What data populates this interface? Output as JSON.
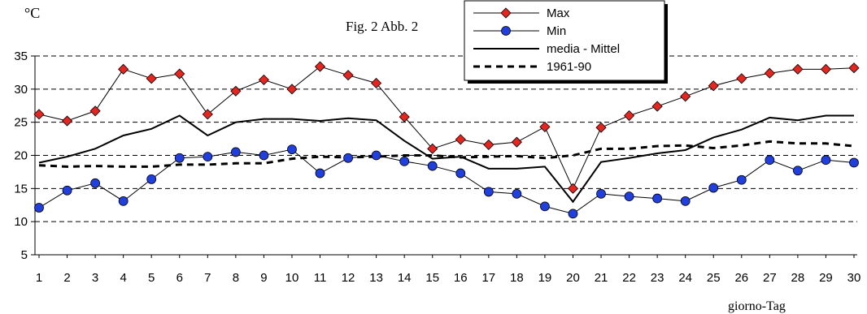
{
  "chart_data": {
    "type": "line",
    "title": "Fig. 2   Abb. 2",
    "ylabel": "°C",
    "xlabel": "giorno-Tag",
    "ylim": [
      5,
      35
    ],
    "yticks": [
      5,
      10,
      15,
      20,
      25,
      30,
      35
    ],
    "grid": "horizontal dashed",
    "legend_position": "top-center-right",
    "x": [
      1,
      2,
      3,
      4,
      5,
      6,
      7,
      8,
      9,
      10,
      11,
      12,
      13,
      14,
      15,
      16,
      17,
      18,
      19,
      20,
      21,
      22,
      23,
      24,
      25,
      26,
      27,
      28,
      29,
      30
    ],
    "series": [
      {
        "name": "Max",
        "marker": "diamond",
        "marker_color": "#e8241e",
        "line_style": "thin",
        "values": [
          26.2,
          25.2,
          26.7,
          33.0,
          31.6,
          32.3,
          26.2,
          29.7,
          31.4,
          30.0,
          33.4,
          32.1,
          30.9,
          25.8,
          21.0,
          22.4,
          21.6,
          22.0,
          24.3,
          15.0,
          24.2,
          26.0,
          27.4,
          28.9,
          30.5,
          31.6,
          32.4,
          33.0,
          33.0,
          33.2
        ]
      },
      {
        "name": "Min",
        "marker": "circle",
        "marker_color": "#1f3fe0",
        "line_style": "thin",
        "values": [
          12.1,
          14.7,
          15.8,
          13.1,
          16.4,
          19.6,
          19.8,
          20.5,
          20.0,
          20.9,
          17.3,
          19.6,
          20.0,
          19.1,
          18.4,
          17.3,
          14.5,
          14.2,
          12.3,
          11.2,
          14.2,
          13.8,
          13.5,
          13.1,
          15.1,
          16.3,
          19.3,
          17.7,
          19.3,
          18.9
        ]
      },
      {
        "name": "media - Mittel",
        "marker": "none",
        "line_style": "solid",
        "values": [
          18.9,
          19.8,
          21.0,
          23.0,
          24.0,
          26.0,
          23.0,
          25.0,
          25.5,
          25.5,
          25.2,
          25.6,
          25.3,
          22.2,
          19.5,
          19.8,
          18.0,
          18.0,
          18.3,
          13.0,
          19.0,
          19.6,
          20.3,
          20.8,
          22.7,
          23.9,
          25.7,
          25.3,
          26.0,
          26.0
        ]
      },
      {
        "name": "1961-90",
        "marker": "none",
        "line_style": "dashed",
        "values": [
          18.5,
          18.3,
          18.4,
          18.3,
          18.3,
          18.6,
          18.6,
          18.8,
          18.8,
          19.5,
          19.8,
          19.7,
          19.8,
          20.0,
          20.0,
          19.7,
          19.8,
          19.9,
          19.6,
          20.0,
          21.0,
          21.0,
          21.4,
          21.5,
          21.1,
          21.5,
          22.1,
          21.8,
          21.8,
          21.4
        ]
      }
    ]
  }
}
